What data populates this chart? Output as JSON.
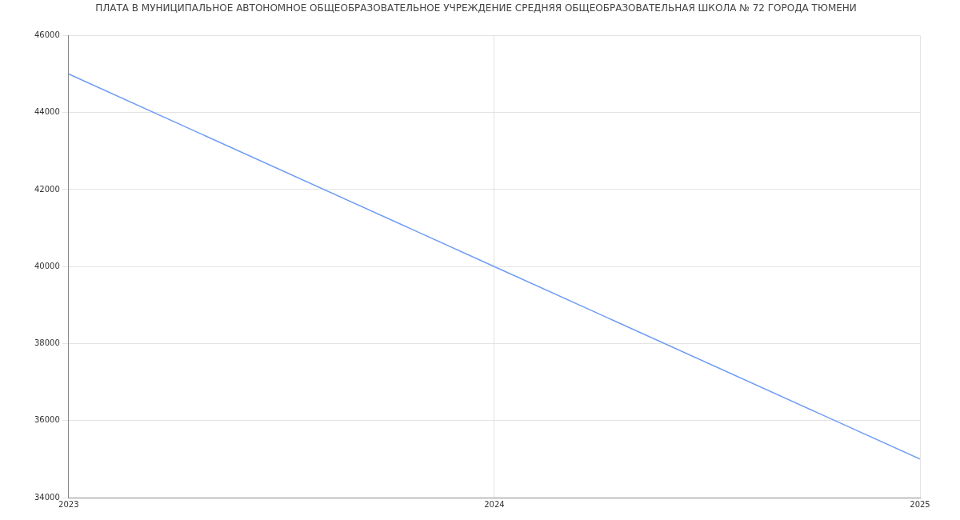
{
  "chart_data": {
    "type": "line",
    "title": "ПЛАТА В МУНИЦИПАЛЬНОЕ АВТОНОМНОЕ ОБЩЕОБРАЗОВАТЕЛЬНОЕ УЧРЕЖДЕНИЕ СРЕДНЯЯ ОБЩЕОБРАЗОВАТЕЛЬНАЯ ШКОЛА № 72 ГОРОДА ТЮМЕНИ",
    "x": [
      2023,
      2024,
      2025
    ],
    "series": [
      {
        "color": "#6f9cf6",
        "values": [
          45000,
          40000,
          35000
        ]
      }
    ],
    "xlim": [
      2023,
      2025
    ],
    "xticks": [
      2023,
      2024,
      2025
    ],
    "ylim": [
      34000,
      46000
    ],
    "yticks": [
      34000,
      36000,
      38000,
      40000,
      42000,
      44000,
      46000
    ],
    "grid": true,
    "legend": false,
    "marker": "none",
    "line_style": "solid"
  }
}
